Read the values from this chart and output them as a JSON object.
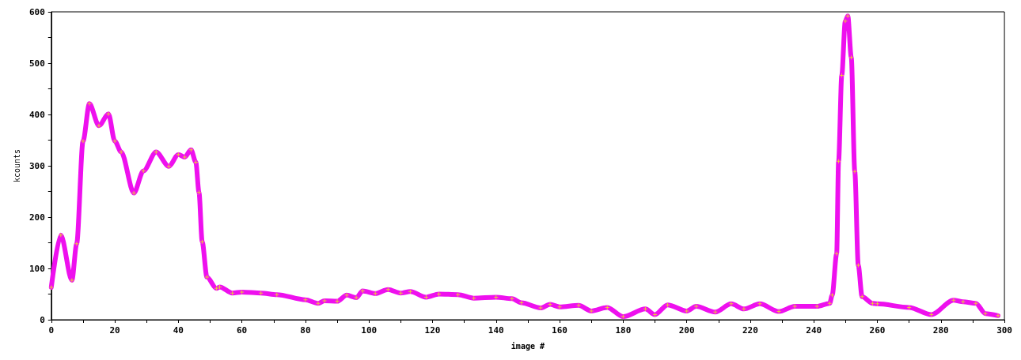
{
  "chart_data": {
    "type": "line",
    "xlabel": "image #",
    "ylabel": "kcounts",
    "xlim": [
      0,
      300
    ],
    "xticks": [
      0,
      20,
      40,
      60,
      80,
      100,
      120,
      140,
      160,
      180,
      200,
      220,
      240,
      260,
      280,
      300
    ],
    "ylim": [
      0,
      600
    ],
    "yticks": [
      0,
      100,
      200,
      300,
      400,
      500,
      600
    ],
    "grid": false,
    "marker": "cross",
    "line_style": "solid",
    "series": [
      {
        "color": "#ee10ee",
        "x": [
          0,
          3,
          6.5,
          8,
          10,
          12,
          15,
          18,
          20,
          22,
          26,
          29,
          33,
          37,
          40,
          42,
          44,
          45.5,
          46.5,
          47.5,
          49,
          52,
          53,
          57,
          60,
          66,
          71,
          80,
          84,
          86,
          90,
          93,
          96,
          98,
          102,
          106,
          110,
          113,
          118,
          122,
          128,
          133,
          140,
          145,
          148,
          154,
          157,
          160,
          166,
          170,
          175,
          180,
          187,
          190,
          194,
          200,
          203,
          209,
          214,
          218,
          223,
          229,
          234,
          241,
          245,
          245.8,
          247.2,
          247.8,
          248.8,
          249.9,
          250.7,
          251.8,
          252.9,
          254,
          255.2,
          258.5,
          260,
          270,
          277,
          284,
          287,
          291,
          294,
          298
        ],
        "values": [
          63,
          165,
          77,
          148,
          348,
          421,
          378,
          401,
          348,
          327,
          247,
          290,
          327,
          299,
          322,
          317,
          331,
          307,
          248,
          152,
          83,
          61,
          64,
          52,
          54,
          52,
          49,
          39,
          32,
          37,
          36,
          48,
          43,
          56,
          51,
          59,
          52,
          55,
          44,
          50,
          49,
          42,
          44,
          41,
          33,
          23,
          30,
          25,
          28,
          17,
          24,
          6,
          21,
          10,
          29,
          17,
          26,
          15,
          31,
          21,
          31,
          16,
          26,
          26,
          32,
          48,
          129,
          309,
          476,
          582,
          592,
          511,
          289,
          106,
          45,
          32,
          31,
          24,
          10,
          38,
          35,
          32,
          12,
          8
        ]
      }
    ]
  }
}
